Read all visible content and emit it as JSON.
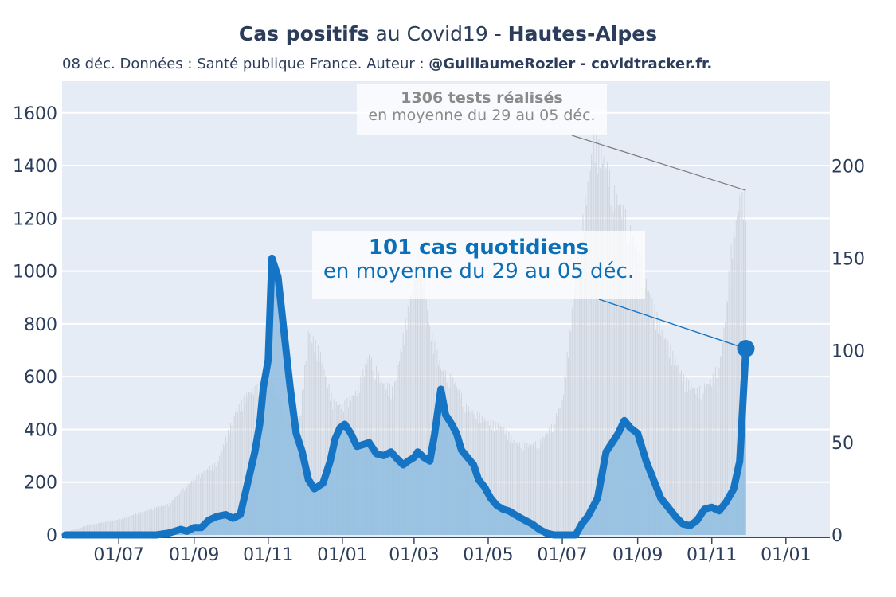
{
  "header": {
    "title_bold_1": "Cas positifs",
    "title_mid": " au Covid19 - ",
    "title_bold_2": "Hautes-Alpes",
    "subtitle_plain": "08 déc. Données : Santé publique France. Auteur : ",
    "subtitle_bold": "@GuillaumeRozier - covidtracker.fr."
  },
  "annotations": {
    "tests_line1": "1306 tests réalisés",
    "tests_line2": "en moyenne du 29 au 05 déc.",
    "cases_line1": "101 cas quotidiens",
    "cases_line2": "en moyenne du 29 au 05 déc."
  },
  "colors": {
    "plot_bg": "#e6ecf6",
    "cases_line": "#1574c4",
    "cases_fill": "#8fbde0",
    "tests_bars": "#c4cbd4",
    "annotation_cases": "#0b6fb8",
    "annotation_tests": "#8a8a8a",
    "text": "#2b3d5a"
  },
  "chart_data": {
    "type": "line",
    "x_tick_labels": [
      "01/07",
      "01/09",
      "01/11",
      "01/01",
      "01/03",
      "01/05",
      "01/07",
      "01/09",
      "01/11",
      "01/01"
    ],
    "x_tick_days": [
      44,
      106,
      167,
      228,
      287,
      348,
      409,
      471,
      532,
      593
    ],
    "y_left": {
      "ylim": [
        0,
        1720
      ],
      "ticks": [
        0,
        200,
        400,
        600,
        800,
        1000,
        1200,
        1400,
        1600
      ]
    },
    "y_right": {
      "ylim": [
        0,
        246
      ],
      "ticks": [
        0,
        50,
        100,
        150,
        200
      ]
    },
    "series": [
      {
        "axis": "left",
        "kind": "bars",
        "days": [
          0,
          20,
          44,
          70,
          85,
          106,
          125,
          140,
          150,
          160,
          167,
          180,
          192,
          200,
          210,
          220,
          228,
          240,
          250,
          260,
          270,
          280,
          287,
          292,
          300,
          310,
          320,
          330,
          348,
          360,
          370,
          380,
          390,
          400,
          409,
          420,
          435,
          445,
          450,
          460,
          471,
          480,
          490,
          500,
          510,
          520,
          532,
          540,
          548,
          555,
          560
        ],
        "values": [
          10,
          40,
          60,
          100,
          120,
          220,
          280,
          480,
          550,
          580,
          600,
          500,
          400,
          800,
          700,
          520,
          500,
          560,
          700,
          600,
          560,
          820,
          1000,
          1100,
          800,
          640,
          600,
          500,
          440,
          420,
          360,
          350,
          360,
          420,
          520,
          1000,
          1540,
          1450,
          1350,
          1250,
          1100,
          950,
          800,
          700,
          600,
          560,
          600,
          700,
          1100,
          1306,
          1306
        ]
      },
      {
        "axis": "right",
        "kind": "line",
        "days": [
          0,
          20,
          44,
          60,
          75,
          85,
          90,
          95,
          100,
          106,
          112,
          118,
          125,
          132,
          138,
          144,
          150,
          156,
          160,
          163,
          167,
          170,
          175,
          180,
          185,
          190,
          195,
          200,
          205,
          212,
          218,
          222,
          226,
          230,
          235,
          240,
          245,
          250,
          256,
          262,
          268,
          272,
          278,
          282,
          287,
          290,
          295,
          300,
          304,
          309,
          313,
          318,
          322,
          326,
          331,
          336,
          340,
          345,
          350,
          355,
          360,
          365,
          370,
          378,
          384,
          390,
          396,
          402,
          409,
          415,
          420,
          425,
          430,
          438,
          445,
          450,
          455,
          460,
          465,
          471,
          478,
          484,
          490,
          496,
          502,
          508,
          514,
          520,
          526,
          532,
          538,
          544,
          550,
          555,
          560
        ],
        "values": [
          0,
          0,
          0,
          0,
          0,
          1,
          2,
          3,
          2,
          4,
          4,
          8,
          10,
          11,
          9,
          11,
          28,
          45,
          60,
          80,
          95,
          150,
          140,
          110,
          80,
          55,
          45,
          30,
          25,
          28,
          40,
          52,
          58,
          60,
          55,
          48,
          49,
          50,
          44,
          43,
          45,
          42,
          38,
          40,
          42,
          45,
          42,
          40,
          55,
          79,
          65,
          60,
          55,
          46,
          42,
          38,
          30,
          26,
          20,
          16,
          14,
          13,
          11,
          8,
          6,
          3,
          1,
          0,
          0,
          0,
          0,
          6,
          10,
          20,
          45,
          50,
          55,
          62,
          58,
          55,
          40,
          30,
          20,
          15,
          10,
          6,
          5,
          8,
          14,
          15,
          13,
          18,
          25,
          40,
          101
        ]
      }
    ],
    "annotations": [
      "1306 tests réalisés",
      "101 cas quotidiens"
    ]
  }
}
